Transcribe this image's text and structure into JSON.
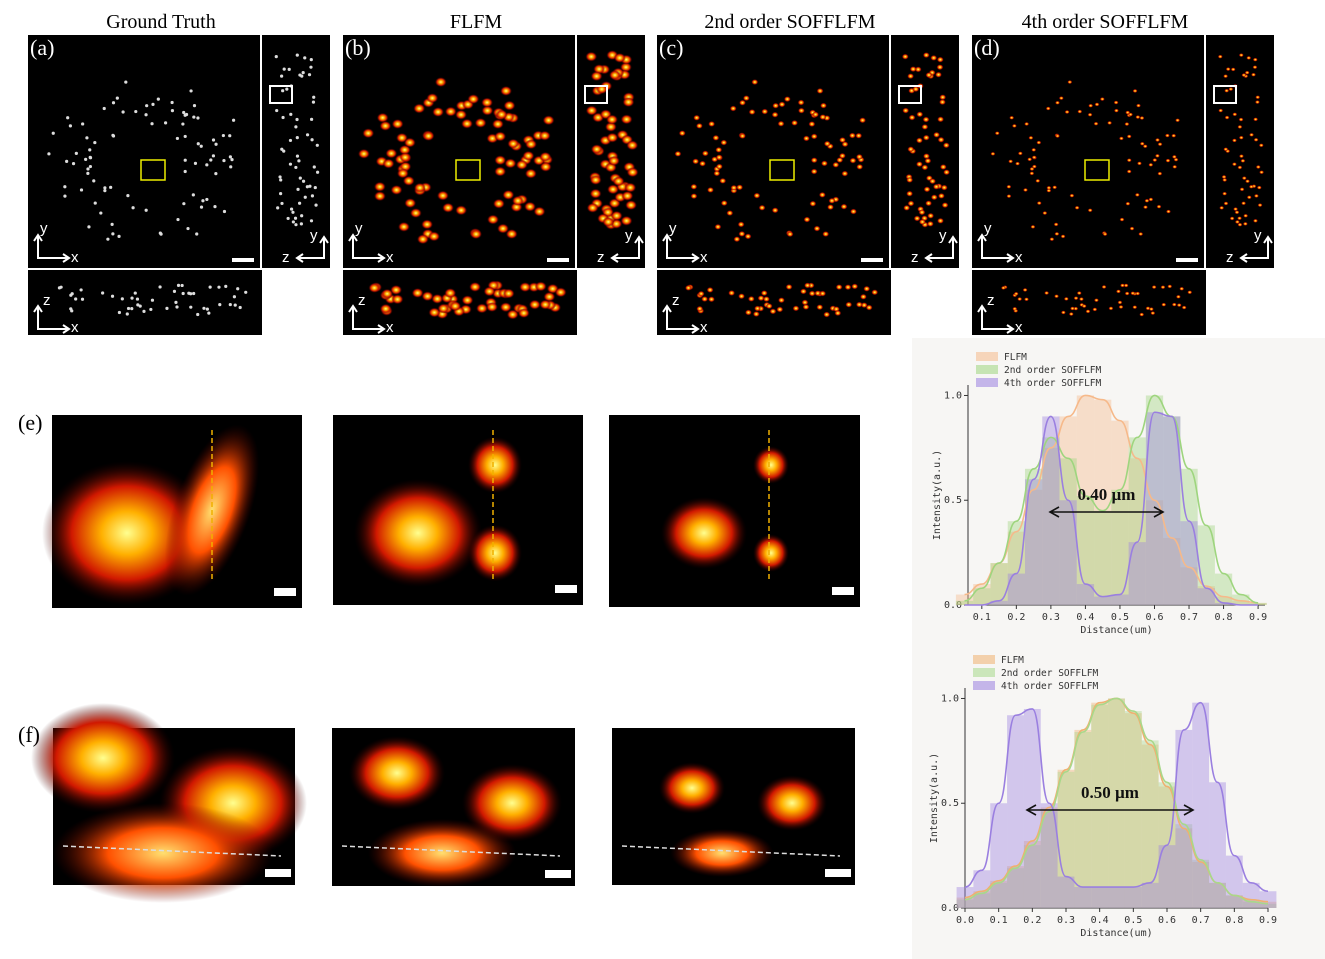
{
  "panels": [
    {
      "title": "Ground Truth",
      "label": "(a)",
      "axis_labels": [
        "y",
        "x",
        "z",
        "y",
        "z",
        "x"
      ]
    },
    {
      "title": "FLFM",
      "label": "(b)",
      "axis_labels": [
        "y",
        "x",
        "z",
        "y",
        "z",
        "x"
      ]
    },
    {
      "title": "2nd order SOFFLFM",
      "label": "(c)",
      "axis_labels": [
        "y",
        "x",
        "z",
        "y",
        "z",
        "x"
      ]
    },
    {
      "title": "4th order SOFFLFM",
      "label": "(d)",
      "axis_labels": [
        "y",
        "x",
        "z",
        "y",
        "z",
        "x"
      ]
    }
  ],
  "rows": [
    {
      "label": "(e)"
    },
    {
      "label": "(f)"
    }
  ],
  "chart_data": [
    {
      "type": "histogram",
      "xlabel": "Distance(um)",
      "ylabel": "Intensity(a.u.)",
      "annotation": "0.40 µm",
      "legend": "upper left",
      "x": [
        0.05,
        0.1,
        0.15,
        0.2,
        0.25,
        0.3,
        0.35,
        0.4,
        0.45,
        0.5,
        0.55,
        0.6,
        0.65,
        0.7,
        0.75,
        0.8,
        0.85,
        0.9
      ],
      "xlim": [
        0.06,
        0.92
      ],
      "xticks": [
        0.1,
        0.2,
        0.3,
        0.4,
        0.5,
        0.6,
        0.7,
        0.8,
        0.9
      ],
      "ylim": [
        0,
        1.05
      ],
      "yticks": [
        {
          "value": 0,
          "label": "0.0"
        },
        0.5,
        {
          "value": 1,
          "label": "1.0"
        }
      ],
      "series": [
        {
          "name": "FLFM",
          "color": "#f6b98a",
          "values": [
            0.05,
            0.1,
            0.2,
            0.35,
            0.55,
            0.75,
            0.9,
            1.0,
            0.98,
            0.88,
            0.7,
            0.5,
            0.32,
            0.18,
            0.09,
            0.04,
            0.02,
            0.01
          ]
        },
        {
          "name": "2nd order SOFFLFM",
          "color": "#9ed57e",
          "values": [
            0.02,
            0.08,
            0.2,
            0.4,
            0.65,
            0.8,
            0.7,
            0.52,
            0.45,
            0.55,
            0.8,
            1.0,
            0.9,
            0.65,
            0.38,
            0.15,
            0.05,
            0.01
          ]
        },
        {
          "name": "4th order SOFFLFM",
          "color": "#9a7fe0",
          "values": [
            0,
            0,
            0.02,
            0.15,
            0.6,
            0.9,
            0.5,
            0.1,
            0.04,
            0.05,
            0.3,
            0.92,
            0.9,
            0.4,
            0.08,
            0.01,
            0,
            0
          ]
        }
      ]
    },
    {
      "type": "histogram",
      "xlabel": "Distance(um)",
      "ylabel": "Intensity(a.u.)",
      "annotation": "0.50 µm",
      "legend": "upper left",
      "x": [
        0,
        0.05,
        0.1,
        0.15,
        0.2,
        0.25,
        0.3,
        0.35,
        0.4,
        0.45,
        0.5,
        0.55,
        0.6,
        0.65,
        0.7,
        0.75,
        0.8,
        0.85,
        0.9
      ],
      "xlim": [
        0,
        0.9
      ],
      "xticks": [
        {
          "value": 0,
          "label": "0.0"
        },
        0.1,
        0.2,
        0.3,
        0.4,
        0.5,
        0.6,
        0.7,
        0.8,
        0.9
      ],
      "ylim": [
        0,
        1.05
      ],
      "yticks": [
        {
          "value": 0,
          "label": "0.0"
        },
        0.5,
        {
          "value": 1,
          "label": "1.0"
        }
      ],
      "series": [
        {
          "name": "FLFM",
          "color": "#f0b070",
          "values": [
            0.05,
            0.08,
            0.13,
            0.2,
            0.32,
            0.48,
            0.66,
            0.85,
            0.98,
            1.0,
            0.93,
            0.78,
            0.58,
            0.38,
            0.22,
            0.12,
            0.06,
            0.04,
            0.03
          ]
        },
        {
          "name": "2nd order SOFFLFM",
          "color": "#a8d88a",
          "values": [
            0.04,
            0.07,
            0.12,
            0.19,
            0.3,
            0.46,
            0.65,
            0.84,
            0.97,
            1.0,
            0.94,
            0.8,
            0.6,
            0.4,
            0.23,
            0.12,
            0.06,
            0.03,
            0.02
          ]
        },
        {
          "name": "4th order SOFFLFM",
          "color": "#9a7fe0",
          "values": [
            0.1,
            0.18,
            0.5,
            0.92,
            0.95,
            0.5,
            0.15,
            0.1,
            0.1,
            0.1,
            0.1,
            0.12,
            0.3,
            0.85,
            0.98,
            0.6,
            0.25,
            0.12,
            0.08
          ]
        }
      ]
    }
  ]
}
